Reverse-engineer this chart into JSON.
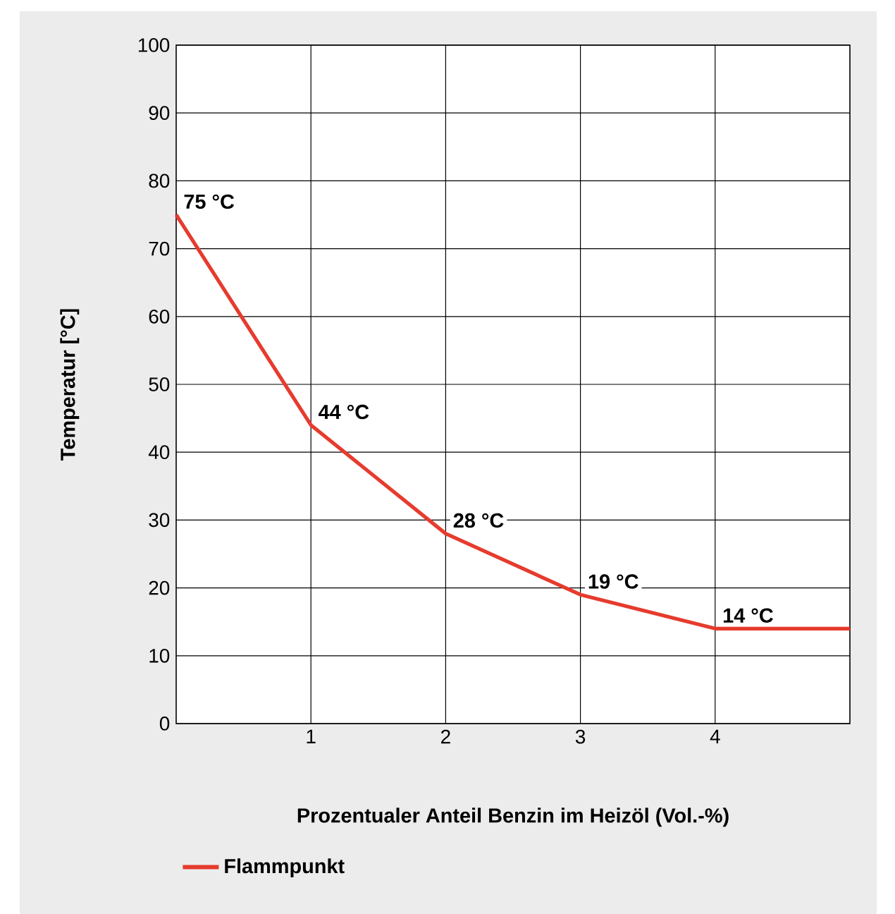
{
  "chart_data": {
    "type": "line",
    "xlabel": "Prozentualer Anteil Benzin im Heizöl (Vol.-%)",
    "ylabel": "Temperatur [°C]",
    "x": [
      0,
      1,
      2,
      3,
      4,
      5
    ],
    "series": [
      {
        "name": "Flammpunkt",
        "color": "#e63b2e",
        "values": [
          75,
          44,
          28,
          19,
          14,
          14
        ],
        "value_labels": [
          "75 °C",
          "44 °C",
          "28 °C",
          "19 °C",
          "14 °C",
          null
        ]
      }
    ],
    "xlim": [
      0,
      5
    ],
    "ylim": [
      0,
      100
    ],
    "xticks": [
      1,
      2,
      3,
      4
    ],
    "yticks": [
      0,
      10,
      20,
      30,
      40,
      50,
      60,
      70,
      80,
      90,
      100
    ],
    "grid": true,
    "legend": "bottom",
    "marker": "none",
    "line_style": "solid"
  }
}
